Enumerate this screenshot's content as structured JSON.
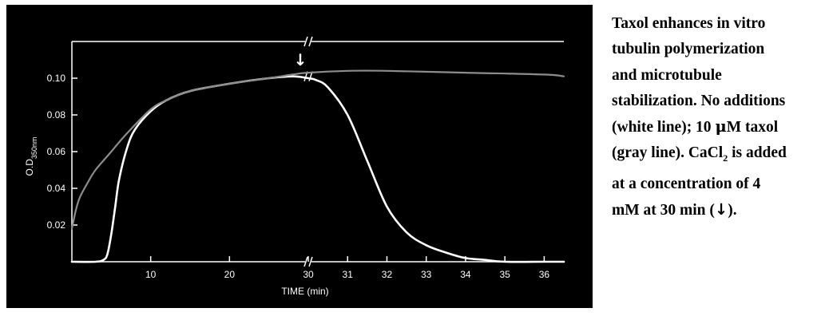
{
  "caption": {
    "line1": "Taxol enhances in vitro",
    "line2": "tubulin polymerization",
    "line3": "and microtubule",
    "line4": "stabilization. No additions",
    "line5a": "(white line); 10 ",
    "line5mu": "μ",
    "line5b": "M taxol",
    "line6a": "(gray line). CaCl",
    "line6sub": "2",
    "line6b": " is added",
    "line7": "at a concentration of 4",
    "line8a": "mM at 30 min (",
    "line8arrow": "↓",
    "line8b": ")."
  },
  "colors": {
    "background": "#000000",
    "axes": "#ffffff",
    "no_additions": "#ffffff",
    "taxol": "#8c8c8c"
  },
  "chart_data": {
    "type": "line",
    "title": "",
    "xlabel": "TIME (min)",
    "ylabel_main": "O.D",
    "ylabel_sub": "350nm",
    "x_axis_break": true,
    "x_segments": [
      {
        "range": [
          0,
          30
        ],
        "ticks": [
          10,
          20,
          30
        ]
      },
      {
        "range": [
          30,
          36.5
        ],
        "ticks": [
          31,
          32,
          33,
          34,
          35,
          36
        ]
      }
    ],
    "ylim": [
      0,
      0.12
    ],
    "yticks": [
      0.02,
      0.04,
      0.06,
      0.08,
      0.1
    ],
    "ytick_labels": [
      "0.02",
      "0.04",
      "0.06",
      "0.08",
      "0.10"
    ],
    "xtick_labels": [
      "10",
      "20",
      "30",
      "31",
      "32",
      "33",
      "34",
      "35",
      "36"
    ],
    "annotation": {
      "symbol": "↓",
      "x": 30,
      "meaning": "CaCl2 added"
    },
    "series": [
      {
        "key": "no_additions",
        "x": [
          0,
          3,
          4,
          4.5,
          5,
          5.5,
          6,
          7,
          8,
          10,
          12,
          15,
          20,
          25,
          28,
          30,
          30.2,
          30.5,
          31,
          31.5,
          32,
          32.5,
          33,
          33.5,
          34,
          34.5,
          35,
          36,
          36.5
        ],
        "y": [
          0,
          0,
          0.001,
          0.004,
          0.015,
          0.03,
          0.045,
          0.062,
          0.072,
          0.082,
          0.088,
          0.093,
          0.097,
          0.1,
          0.101,
          0.1,
          0.099,
          0.095,
          0.08,
          0.055,
          0.03,
          0.016,
          0.009,
          0.005,
          0.002,
          0.001,
          0,
          0,
          0
        ]
      },
      {
        "key": "taxol",
        "x": [
          0,
          0.5,
          1,
          2,
          3,
          5,
          7,
          10,
          12,
          15,
          20,
          25,
          28,
          30,
          31,
          32,
          34,
          36,
          36.5
        ],
        "y": [
          0.018,
          0.028,
          0.035,
          0.043,
          0.05,
          0.06,
          0.07,
          0.083,
          0.088,
          0.093,
          0.097,
          0.1,
          0.102,
          0.103,
          0.104,
          0.104,
          0.103,
          0.102,
          0.101
        ]
      }
    ]
  }
}
